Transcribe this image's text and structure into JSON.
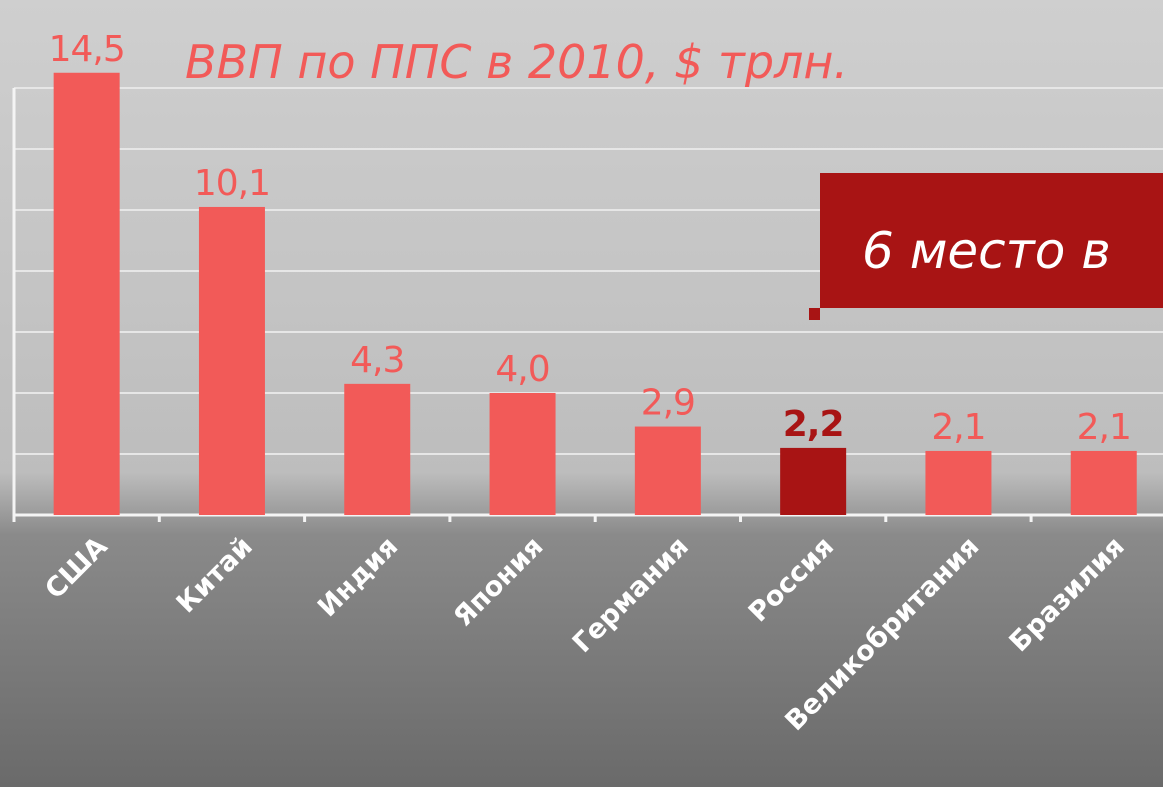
{
  "chart_data": {
    "type": "bar",
    "title": "ВВП по ППС в 2010, $ трлн.",
    "annotation": "6 место в",
    "categories": [
      "США",
      "Китай",
      "Индия",
      "Япония",
      "Германия",
      "Россия",
      "Великобритания",
      "Бразилия"
    ],
    "values": [
      14.5,
      10.1,
      4.3,
      4.0,
      2.9,
      2.2,
      2.1,
      2.1
    ],
    "value_labels": [
      "14,5",
      "10,1",
      "4,3",
      "4,0",
      "2,9",
      "2,2",
      "2,1",
      "2,1"
    ],
    "colors": [
      "#f25a58",
      "#f25a58",
      "#f25a58",
      "#f25a58",
      "#f25a58",
      "#a81414",
      "#f25a58",
      "#f25a58"
    ],
    "ylim": [
      0,
      16
    ],
    "yticks": [
      0,
      2,
      4,
      6,
      8,
      10,
      12,
      14
    ],
    "grid": true
  }
}
